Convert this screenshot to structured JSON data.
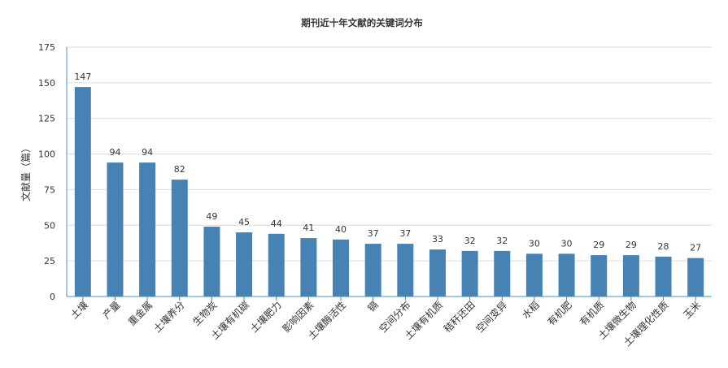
{
  "chart_data": {
    "type": "bar",
    "title": "期刊近十年文献的关键词分布",
    "xlabel": "",
    "ylabel": "文献量（篇）",
    "ylim": [
      0,
      175
    ],
    "yticks": [
      0,
      25,
      50,
      75,
      100,
      125,
      150,
      175
    ],
    "grid": true,
    "legend": "none",
    "bar_color": "#4682b4",
    "categories": [
      "土壤",
      "产量",
      "重金属",
      "土壤养分",
      "生物炭",
      "土壤有机碳",
      "土壤肥力",
      "影响因素",
      "土壤酶活性",
      "镉",
      "空间分布",
      "土壤有机质",
      "秸秆还田",
      "空间变异",
      "水稻",
      "有机肥",
      "有机质",
      "土壤微生物",
      "土壤理化性质",
      "玉米"
    ],
    "values": [
      147,
      94,
      94,
      82,
      49,
      45,
      44,
      41,
      40,
      37,
      37,
      33,
      32,
      32,
      30,
      30,
      29,
      29,
      28,
      27
    ]
  }
}
